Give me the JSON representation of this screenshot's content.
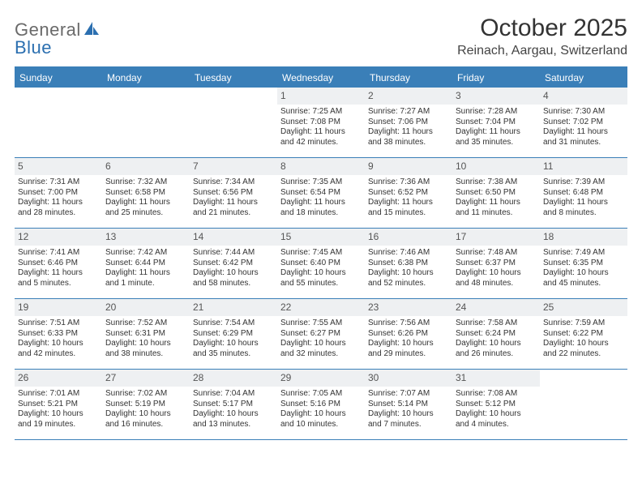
{
  "colors": {
    "header_bg": "#3a7fb8",
    "border": "#3a7fb8",
    "daynum_bg": "#eef0f2",
    "logo_blue": "#2b6fb0",
    "logo_gray": "#6a6a6a",
    "text": "#333333"
  },
  "logo": {
    "part1": "General",
    "part2": "Blue"
  },
  "title": "October 2025",
  "location": "Reinach, Aargau, Switzerland",
  "day_headers": [
    "Sunday",
    "Monday",
    "Tuesday",
    "Wednesday",
    "Thursday",
    "Friday",
    "Saturday"
  ],
  "weeks": [
    [
      {
        "n": "",
        "sunrise": "",
        "sunset": "",
        "daylight1": "",
        "daylight2": "",
        "empty": true
      },
      {
        "n": "",
        "sunrise": "",
        "sunset": "",
        "daylight1": "",
        "daylight2": "",
        "empty": true
      },
      {
        "n": "",
        "sunrise": "",
        "sunset": "",
        "daylight1": "",
        "daylight2": "",
        "empty": true
      },
      {
        "n": "1",
        "sunrise": "Sunrise: 7:25 AM",
        "sunset": "Sunset: 7:08 PM",
        "daylight1": "Daylight: 11 hours",
        "daylight2": "and 42 minutes."
      },
      {
        "n": "2",
        "sunrise": "Sunrise: 7:27 AM",
        "sunset": "Sunset: 7:06 PM",
        "daylight1": "Daylight: 11 hours",
        "daylight2": "and 38 minutes."
      },
      {
        "n": "3",
        "sunrise": "Sunrise: 7:28 AM",
        "sunset": "Sunset: 7:04 PM",
        "daylight1": "Daylight: 11 hours",
        "daylight2": "and 35 minutes."
      },
      {
        "n": "4",
        "sunrise": "Sunrise: 7:30 AM",
        "sunset": "Sunset: 7:02 PM",
        "daylight1": "Daylight: 11 hours",
        "daylight2": "and 31 minutes."
      }
    ],
    [
      {
        "n": "5",
        "sunrise": "Sunrise: 7:31 AM",
        "sunset": "Sunset: 7:00 PM",
        "daylight1": "Daylight: 11 hours",
        "daylight2": "and 28 minutes."
      },
      {
        "n": "6",
        "sunrise": "Sunrise: 7:32 AM",
        "sunset": "Sunset: 6:58 PM",
        "daylight1": "Daylight: 11 hours",
        "daylight2": "and 25 minutes."
      },
      {
        "n": "7",
        "sunrise": "Sunrise: 7:34 AM",
        "sunset": "Sunset: 6:56 PM",
        "daylight1": "Daylight: 11 hours",
        "daylight2": "and 21 minutes."
      },
      {
        "n": "8",
        "sunrise": "Sunrise: 7:35 AM",
        "sunset": "Sunset: 6:54 PM",
        "daylight1": "Daylight: 11 hours",
        "daylight2": "and 18 minutes."
      },
      {
        "n": "9",
        "sunrise": "Sunrise: 7:36 AM",
        "sunset": "Sunset: 6:52 PM",
        "daylight1": "Daylight: 11 hours",
        "daylight2": "and 15 minutes."
      },
      {
        "n": "10",
        "sunrise": "Sunrise: 7:38 AM",
        "sunset": "Sunset: 6:50 PM",
        "daylight1": "Daylight: 11 hours",
        "daylight2": "and 11 minutes."
      },
      {
        "n": "11",
        "sunrise": "Sunrise: 7:39 AM",
        "sunset": "Sunset: 6:48 PM",
        "daylight1": "Daylight: 11 hours",
        "daylight2": "and 8 minutes."
      }
    ],
    [
      {
        "n": "12",
        "sunrise": "Sunrise: 7:41 AM",
        "sunset": "Sunset: 6:46 PM",
        "daylight1": "Daylight: 11 hours",
        "daylight2": "and 5 minutes."
      },
      {
        "n": "13",
        "sunrise": "Sunrise: 7:42 AM",
        "sunset": "Sunset: 6:44 PM",
        "daylight1": "Daylight: 11 hours",
        "daylight2": "and 1 minute."
      },
      {
        "n": "14",
        "sunrise": "Sunrise: 7:44 AM",
        "sunset": "Sunset: 6:42 PM",
        "daylight1": "Daylight: 10 hours",
        "daylight2": "and 58 minutes."
      },
      {
        "n": "15",
        "sunrise": "Sunrise: 7:45 AM",
        "sunset": "Sunset: 6:40 PM",
        "daylight1": "Daylight: 10 hours",
        "daylight2": "and 55 minutes."
      },
      {
        "n": "16",
        "sunrise": "Sunrise: 7:46 AM",
        "sunset": "Sunset: 6:38 PM",
        "daylight1": "Daylight: 10 hours",
        "daylight2": "and 52 minutes."
      },
      {
        "n": "17",
        "sunrise": "Sunrise: 7:48 AM",
        "sunset": "Sunset: 6:37 PM",
        "daylight1": "Daylight: 10 hours",
        "daylight2": "and 48 minutes."
      },
      {
        "n": "18",
        "sunrise": "Sunrise: 7:49 AM",
        "sunset": "Sunset: 6:35 PM",
        "daylight1": "Daylight: 10 hours",
        "daylight2": "and 45 minutes."
      }
    ],
    [
      {
        "n": "19",
        "sunrise": "Sunrise: 7:51 AM",
        "sunset": "Sunset: 6:33 PM",
        "daylight1": "Daylight: 10 hours",
        "daylight2": "and 42 minutes."
      },
      {
        "n": "20",
        "sunrise": "Sunrise: 7:52 AM",
        "sunset": "Sunset: 6:31 PM",
        "daylight1": "Daylight: 10 hours",
        "daylight2": "and 38 minutes."
      },
      {
        "n": "21",
        "sunrise": "Sunrise: 7:54 AM",
        "sunset": "Sunset: 6:29 PM",
        "daylight1": "Daylight: 10 hours",
        "daylight2": "and 35 minutes."
      },
      {
        "n": "22",
        "sunrise": "Sunrise: 7:55 AM",
        "sunset": "Sunset: 6:27 PM",
        "daylight1": "Daylight: 10 hours",
        "daylight2": "and 32 minutes."
      },
      {
        "n": "23",
        "sunrise": "Sunrise: 7:56 AM",
        "sunset": "Sunset: 6:26 PM",
        "daylight1": "Daylight: 10 hours",
        "daylight2": "and 29 minutes."
      },
      {
        "n": "24",
        "sunrise": "Sunrise: 7:58 AM",
        "sunset": "Sunset: 6:24 PM",
        "daylight1": "Daylight: 10 hours",
        "daylight2": "and 26 minutes."
      },
      {
        "n": "25",
        "sunrise": "Sunrise: 7:59 AM",
        "sunset": "Sunset: 6:22 PM",
        "daylight1": "Daylight: 10 hours",
        "daylight2": "and 22 minutes."
      }
    ],
    [
      {
        "n": "26",
        "sunrise": "Sunrise: 7:01 AM",
        "sunset": "Sunset: 5:21 PM",
        "daylight1": "Daylight: 10 hours",
        "daylight2": "and 19 minutes."
      },
      {
        "n": "27",
        "sunrise": "Sunrise: 7:02 AM",
        "sunset": "Sunset: 5:19 PM",
        "daylight1": "Daylight: 10 hours",
        "daylight2": "and 16 minutes."
      },
      {
        "n": "28",
        "sunrise": "Sunrise: 7:04 AM",
        "sunset": "Sunset: 5:17 PM",
        "daylight1": "Daylight: 10 hours",
        "daylight2": "and 13 minutes."
      },
      {
        "n": "29",
        "sunrise": "Sunrise: 7:05 AM",
        "sunset": "Sunset: 5:16 PM",
        "daylight1": "Daylight: 10 hours",
        "daylight2": "and 10 minutes."
      },
      {
        "n": "30",
        "sunrise": "Sunrise: 7:07 AM",
        "sunset": "Sunset: 5:14 PM",
        "daylight1": "Daylight: 10 hours",
        "daylight2": "and 7 minutes."
      },
      {
        "n": "31",
        "sunrise": "Sunrise: 7:08 AM",
        "sunset": "Sunset: 5:12 PM",
        "daylight1": "Daylight: 10 hours",
        "daylight2": "and 4 minutes."
      },
      {
        "n": "",
        "sunrise": "",
        "sunset": "",
        "daylight1": "",
        "daylight2": "",
        "empty": true
      }
    ]
  ]
}
